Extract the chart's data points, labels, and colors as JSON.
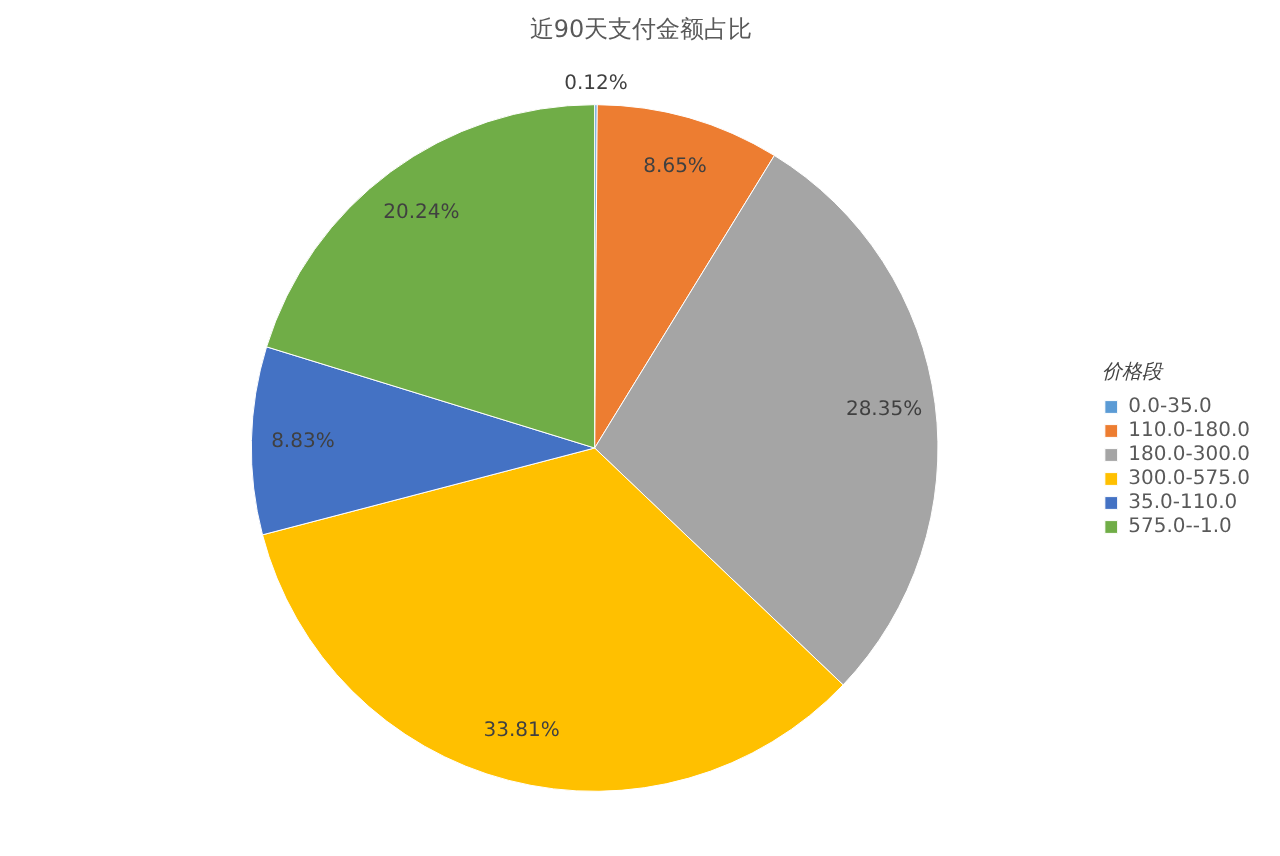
{
  "chart_data": {
    "type": "pie",
    "title": "近90天支付金额占比",
    "legend_title": "价格段",
    "legend": "right",
    "data_labels": true,
    "categories": [
      "0.0-35.0",
      "110.0-180.0",
      "180.0-300.0",
      "300.0-575.0",
      "35.0-110.0",
      "575.0--1.0"
    ],
    "values": [
      0.12,
      8.65,
      28.35,
      33.81,
      8.83,
      20.24
    ],
    "value_labels": [
      "0.12%",
      "8.65%",
      "28.35%",
      "33.81%",
      "8.83%",
      "20.24%"
    ],
    "colors": [
      "#5b9bd5",
      "#ed7d31",
      "#a5a5a5",
      "#ffc000",
      "#4472c4",
      "#70ad47"
    ]
  }
}
